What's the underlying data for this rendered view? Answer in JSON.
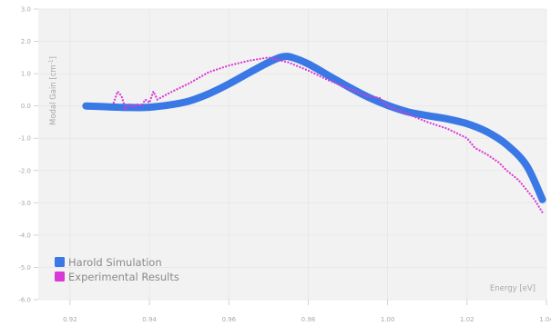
{
  "chart_data": {
    "type": "line",
    "title": "",
    "xlabel": "Energy [eV]",
    "ylabel": "Modal Gain [cm",
    "ylabel_sup": "-1",
    "ylabel_end": "]",
    "xlim": [
      0.912,
      1.04
    ],
    "ylim": [
      -6.0,
      3.0
    ],
    "xticks": [
      0.92,
      0.94,
      0.96,
      0.98,
      1.0,
      1.02,
      1.04
    ],
    "xtick_labels": [
      "0.92",
      "0.94",
      "0.96",
      "0.98",
      "1.00",
      "1.02",
      "1.04"
    ],
    "yticks": [
      3.0,
      2.0,
      1.0,
      0.0,
      -1.0,
      -2.0,
      -3.0,
      -4.0,
      -5.0,
      -6.0
    ],
    "ytick_labels": [
      "3.0",
      "2.0",
      "1.0",
      "0.0",
      "-1.0",
      "-2.0",
      "-3.0",
      "-4.0",
      "-5.0",
      "-6.0"
    ],
    "grid": true,
    "legend_position": "bottom-left",
    "series": [
      {
        "name": "Harold Simulation",
        "color": "#3a78e6",
        "style": "solid",
        "x": [
          0.924,
          0.93,
          0.935,
          0.94,
          0.945,
          0.95,
          0.955,
          0.96,
          0.965,
          0.97,
          0.9735,
          0.976,
          0.98,
          0.985,
          0.99,
          0.995,
          1.0,
          1.005,
          1.01,
          1.015,
          1.02,
          1.025,
          1.03,
          1.035,
          1.039
        ],
        "y": [
          0.0,
          -0.03,
          -0.05,
          -0.04,
          0.03,
          0.15,
          0.38,
          0.68,
          1.02,
          1.35,
          1.52,
          1.5,
          1.3,
          0.95,
          0.6,
          0.28,
          0.02,
          -0.18,
          -0.3,
          -0.4,
          -0.55,
          -0.8,
          -1.2,
          -1.85,
          -2.9
        ]
      },
      {
        "name": "Experimental Results",
        "color": "#d93ad6",
        "style": "dotted",
        "x": [
          0.931,
          0.932,
          0.933,
          0.934,
          0.935,
          0.936,
          0.937,
          0.938,
          0.939,
          0.94,
          0.941,
          0.942,
          0.945,
          0.95,
          0.955,
          0.96,
          0.965,
          0.97,
          0.975,
          0.98,
          0.985,
          0.99,
          0.995,
          0.998,
          1.0,
          1.005,
          1.01,
          1.015,
          1.02,
          1.022,
          1.025,
          1.028,
          1.03,
          1.033,
          1.035,
          1.037,
          1.039
        ],
        "y": [
          0.1,
          0.45,
          0.3,
          -0.1,
          0.05,
          -0.05,
          0.05,
          0.0,
          0.2,
          0.1,
          0.45,
          0.2,
          0.4,
          0.7,
          1.05,
          1.25,
          1.4,
          1.5,
          1.35,
          1.1,
          0.8,
          0.55,
          0.3,
          0.25,
          0.0,
          -0.25,
          -0.5,
          -0.7,
          -1.0,
          -1.3,
          -1.5,
          -1.75,
          -2.0,
          -2.3,
          -2.6,
          -2.9,
          -3.3
        ]
      }
    ]
  }
}
